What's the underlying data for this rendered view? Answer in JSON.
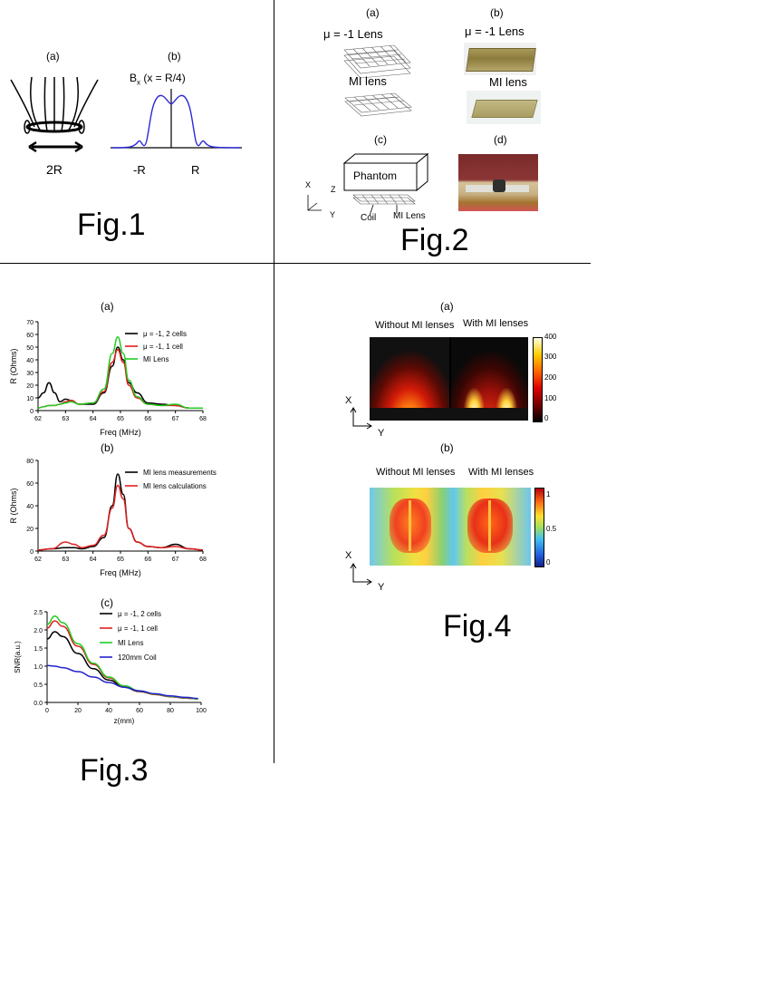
{
  "fig1": {
    "caption": "Fig.1",
    "panel_a": "(a)",
    "panel_b": "(b)",
    "label_2r": "2R",
    "bx_label": "B",
    "bx_sub": "x",
    "bx_arg": " (x = R/4)",
    "tick_neg_r": "-R",
    "tick_r": "R",
    "curve_color": "#2b2bd6"
  },
  "fig2": {
    "caption": "Fig.2",
    "panel_a": "(a)",
    "panel_b": "(b)",
    "panel_c": "(c)",
    "panel_d": "(d)",
    "mu_lens": "μ = -1 Lens",
    "mi_lens": "MI lens",
    "phantom": "Phantom",
    "coil": "Coil",
    "mi_lens_cap": "MI Lens",
    "axis_x": "X",
    "axis_y": "Y",
    "axis_z": "Z"
  },
  "fig3": {
    "caption": "Fig.3",
    "panel_a": "(a)",
    "panel_b": "(b)",
    "panel_c": "(c)",
    "a_ylabel": "R (Ohms)",
    "a_xlabel": "Freq (MHz)",
    "b_ylabel": "R (Ohms)",
    "b_xlabel": "Freq (MHz)",
    "c_ylabel": "SNR(a.u.)",
    "c_xlabel": "z(mm)",
    "a_legend": [
      "μ = -1, 2 cells",
      "μ = -1, 1 cell",
      "MI Lens"
    ],
    "b_legend": [
      "MI lens measurements",
      "MI lens calculations"
    ],
    "c_legend": [
      "μ = -1, 2 cells",
      "μ = -1, 1 cell",
      "MI Lens",
      "120mm Coil"
    ],
    "a_yticks": [
      "0",
      "10",
      "20",
      "30",
      "40",
      "50",
      "60",
      "70"
    ],
    "a_xticks": [
      "62",
      "63",
      "64",
      "65",
      "66",
      "67",
      "68"
    ],
    "b_yticks": [
      "0",
      "20",
      "40",
      "60",
      "80"
    ],
    "b_xticks": [
      "62",
      "63",
      "64",
      "65",
      "66",
      "67",
      "68"
    ],
    "c_yticks": [
      "0.0",
      "0.5",
      "1.0",
      "1.5",
      "2.0",
      "2.5"
    ],
    "c_xticks": [
      "0",
      "20",
      "40",
      "60",
      "80",
      "100"
    ]
  },
  "fig4": {
    "caption": "Fig.4",
    "panel_a": "(a)",
    "panel_b": "(b)",
    "without": "Without MI lenses",
    "with": "With MI lenses",
    "a_cbar_ticks": [
      "400",
      "300",
      "200",
      "100",
      "0"
    ],
    "b_cbar_ticks": [
      "1",
      "0.5",
      "0"
    ],
    "axis_x": "X",
    "axis_y": "Y"
  },
  "chart_data": [
    {
      "type": "line",
      "xlabel": "Freq (MHz)",
      "ylabel": "R (Ohms)",
      "xlim": [
        62,
        68
      ],
      "ylim": [
        0,
        70
      ],
      "x": [
        62,
        62.2,
        62.4,
        62.6,
        62.8,
        63,
        63.2,
        63.5,
        64,
        64.4,
        64.7,
        64.9,
        65.1,
        65.3,
        65.6,
        66,
        66.5,
        67,
        67.5,
        68
      ],
      "series": [
        {
          "name": "μ = -1, 2 cells",
          "color": "#000000",
          "values": [
            10,
            14,
            22,
            14,
            7,
            9,
            8,
            5,
            5,
            14,
            35,
            50,
            40,
            22,
            14,
            6,
            5,
            4,
            2,
            2
          ]
        },
        {
          "name": "μ = -1, 1 cell",
          "color": "#e02020",
          "values": [
            2,
            3,
            4,
            4,
            5,
            7,
            8,
            5,
            6,
            15,
            38,
            48,
            38,
            20,
            10,
            5,
            4,
            4,
            2,
            2
          ]
        },
        {
          "name": "MI Lens",
          "color": "#22cc22",
          "values": [
            2,
            3,
            4,
            4,
            5,
            6,
            7,
            5,
            6,
            17,
            45,
            58,
            45,
            24,
            11,
            5,
            4,
            5,
            2,
            2
          ]
        }
      ]
    },
    {
      "type": "line",
      "xlabel": "Freq (MHz)",
      "ylabel": "R (Ohms)",
      "xlim": [
        62,
        68
      ],
      "ylim": [
        0,
        80
      ],
      "x": [
        62,
        62.5,
        63,
        63.3,
        63.6,
        64,
        64.4,
        64.7,
        64.9,
        65.1,
        65.3,
        65.6,
        66,
        66.5,
        67,
        67.5,
        68
      ],
      "series": [
        {
          "name": "MI lens measurements",
          "color": "#000000",
          "values": [
            1,
            2,
            3,
            3,
            2,
            4,
            12,
            40,
            68,
            50,
            20,
            8,
            4,
            3,
            6,
            2,
            1
          ]
        },
        {
          "name": "MI lens calculations",
          "color": "#e02020",
          "values": [
            1,
            2,
            8,
            6,
            3,
            5,
            14,
            38,
            58,
            46,
            20,
            8,
            4,
            3,
            4,
            2,
            1
          ]
        }
      ]
    },
    {
      "type": "line",
      "xlabel": "z(mm)",
      "ylabel": "SNR(a.u.)",
      "xlim": [
        0,
        100
      ],
      "ylim": [
        0,
        2.5
      ],
      "x": [
        0,
        5,
        10,
        20,
        30,
        40,
        50,
        60,
        70,
        80,
        90,
        98
      ],
      "series": [
        {
          "name": "μ = -1, 2 cells",
          "color": "#000000",
          "values": [
            1.75,
            1.95,
            1.82,
            1.35,
            0.93,
            0.62,
            0.42,
            0.3,
            0.22,
            0.16,
            0.12,
            0.1
          ]
        },
        {
          "name": "μ = -1, 1 cell",
          "color": "#e02020",
          "values": [
            2.05,
            2.25,
            2.1,
            1.55,
            1.05,
            0.68,
            0.45,
            0.31,
            0.22,
            0.16,
            0.12,
            0.1
          ]
        },
        {
          "name": "MI Lens",
          "color": "#22cc22",
          "values": [
            2.15,
            2.38,
            2.2,
            1.62,
            1.08,
            0.7,
            0.46,
            0.32,
            0.23,
            0.17,
            0.13,
            0.1
          ]
        },
        {
          "name": "120mm Coil",
          "color": "#2222cc",
          "values": [
            1.02,
            1.0,
            0.96,
            0.85,
            0.7,
            0.55,
            0.42,
            0.32,
            0.24,
            0.18,
            0.14,
            0.11
          ]
        }
      ]
    }
  ]
}
